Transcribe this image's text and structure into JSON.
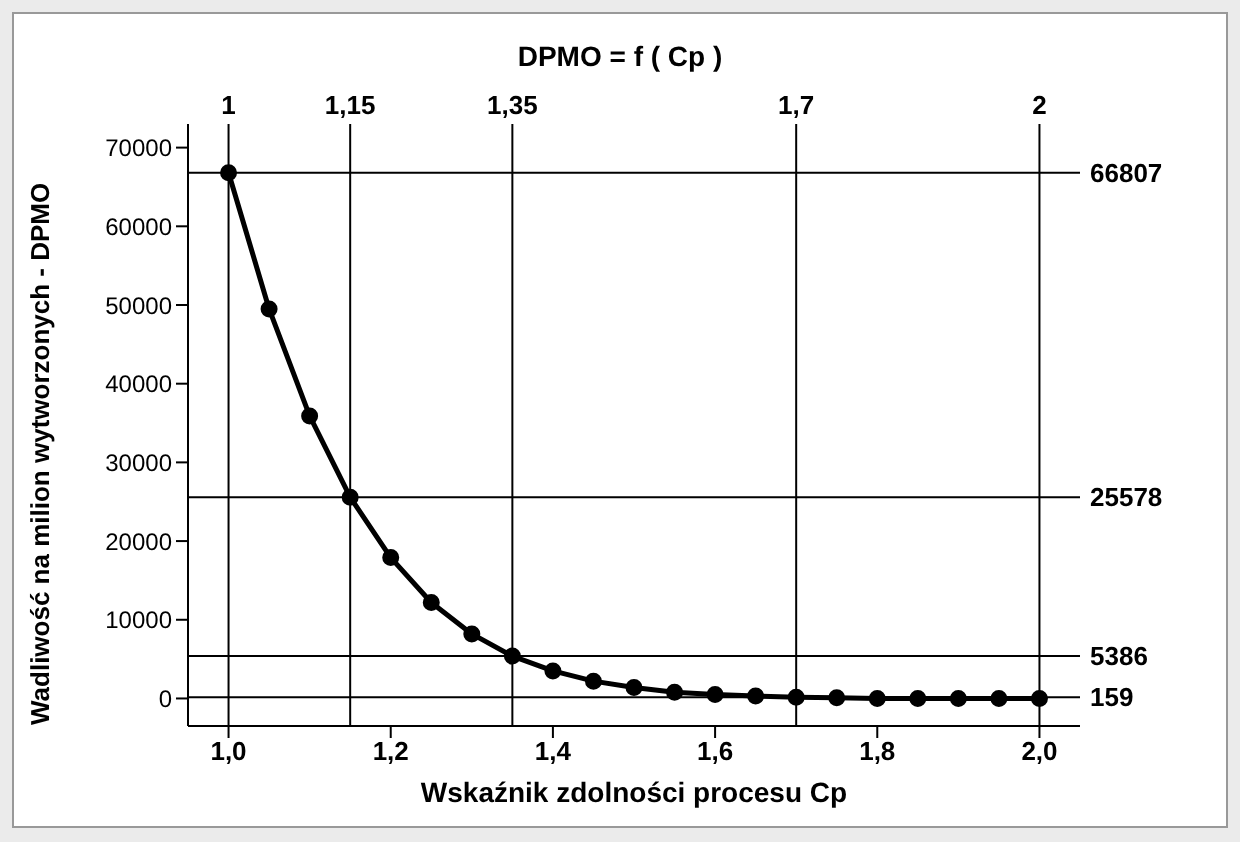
{
  "chart_data": {
    "type": "line",
    "title": "DPMO = f ( Cp )",
    "xlabel": "Wskaźnik zdolności procesu Cp",
    "ylabel": "Wadliwość na milion wytworzonych - DPMO",
    "x": [
      1.0,
      1.05,
      1.1,
      1.15,
      1.2,
      1.25,
      1.3,
      1.35,
      1.4,
      1.45,
      1.5,
      1.55,
      1.6,
      1.65,
      1.7,
      1.75,
      1.8,
      1.85,
      1.9,
      1.95,
      2.0
    ],
    "series": [
      {
        "color": "#000000",
        "values": [
          66807,
          49500,
          35900,
          25578,
          17900,
          12200,
          8200,
          5386,
          3500,
          2200,
          1400,
          800,
          500,
          300,
          159,
          100,
          0,
          0,
          0,
          0,
          0
        ]
      }
    ],
    "xlim": [
      0.95,
      2.05
    ],
    "xticks": [
      {
        "value": 1.0,
        "label": "1,0"
      },
      {
        "value": 1.2,
        "label": "1,2"
      },
      {
        "value": 1.4,
        "label": "1,4"
      },
      {
        "value": 1.6,
        "label": "1,6"
      },
      {
        "value": 1.8,
        "label": "1,8"
      },
      {
        "value": 2.0,
        "label": "2,0"
      }
    ],
    "ylim": [
      -3500,
      73000
    ],
    "yticks": [
      0,
      10000,
      20000,
      30000,
      40000,
      50000,
      60000,
      70000
    ],
    "ref_lines": [
      {
        "axis": "y",
        "value": 66807,
        "label": "66807",
        "color": "#000000"
      },
      {
        "axis": "y",
        "value": 25578,
        "label": "25578",
        "color": "#000000"
      },
      {
        "axis": "y",
        "value": 5386,
        "label": "5386",
        "color": "#000000"
      },
      {
        "axis": "y",
        "value": 159,
        "label": "159",
        "color": "#000000"
      },
      {
        "axis": "x",
        "value": 1,
        "label": "1",
        "color": "#000000"
      },
      {
        "axis": "x",
        "value": 1.15,
        "label": "1,15",
        "color": "#000000"
      },
      {
        "axis": "x",
        "value": 1.35,
        "label": "1,35",
        "color": "#000000"
      },
      {
        "axis": "x",
        "value": 1.7,
        "label": "1,7",
        "color": "#000000"
      },
      {
        "axis": "x",
        "value": 2,
        "label": "2",
        "color": "#000000"
      }
    ],
    "marker": "circle",
    "line_style": "solid"
  }
}
